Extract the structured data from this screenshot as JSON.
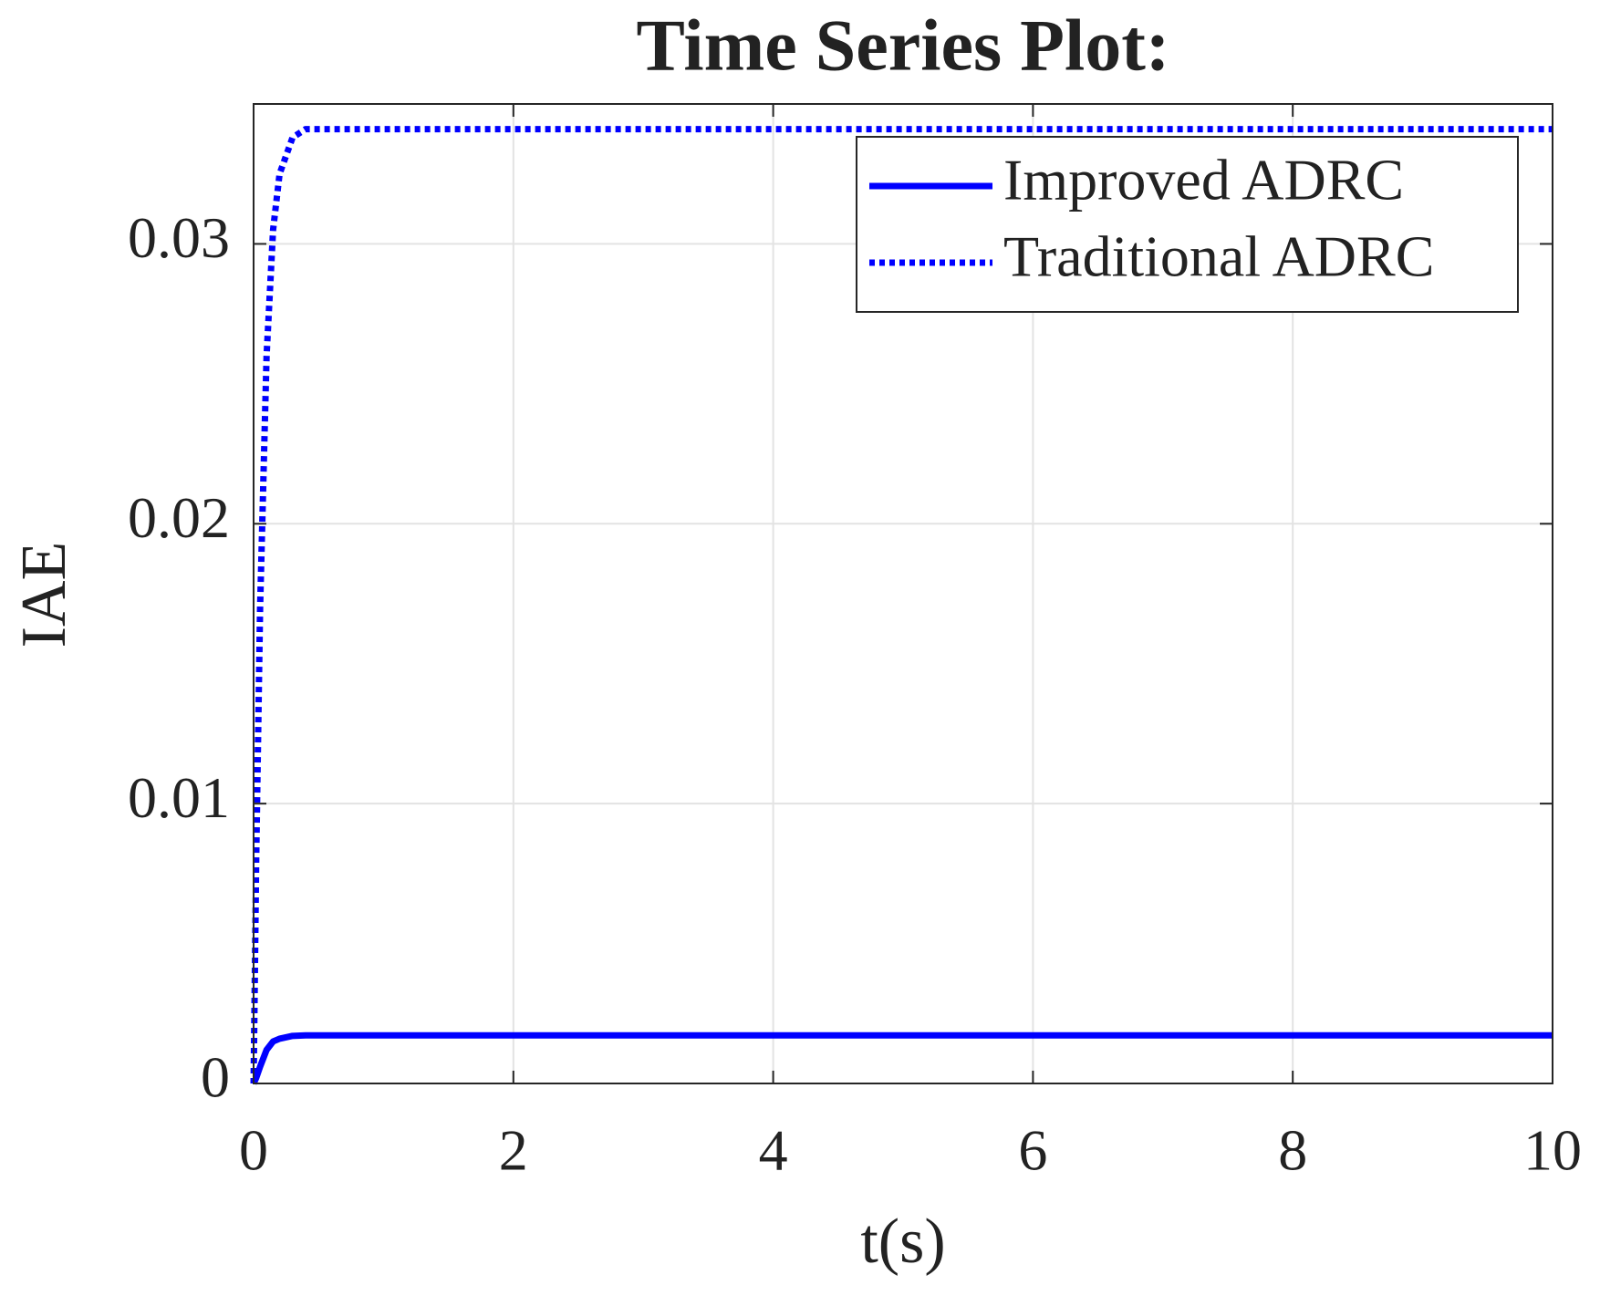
{
  "chart_data": {
    "type": "line",
    "title": "Time Series Plot:",
    "x_label": "t(s)",
    "y_label": "IAE",
    "x": [
      0,
      0.02,
      0.05,
      0.1,
      0.15,
      0.2,
      0.3,
      0.4,
      1,
      10
    ],
    "series": [
      {
        "name": "Improved ADRC",
        "color": "#0000ff",
        "line_style": "solid",
        "values": [
          0,
          0.0002,
          0.0006,
          0.0012,
          0.0015,
          0.0016,
          0.0017,
          0.00172,
          0.00172,
          0.00172
        ]
      },
      {
        "name": "Traditional ADRC",
        "color": "#0000ff",
        "line_style": "dotted",
        "values": [
          0,
          0.008,
          0.017,
          0.026,
          0.0305,
          0.0325,
          0.0338,
          0.0341,
          0.0341,
          0.0341
        ]
      }
    ],
    "xlim": [
      0,
      10
    ],
    "xticks": [
      0,
      2,
      4,
      6,
      8,
      10
    ],
    "ylim": [
      0,
      0.035
    ],
    "yticks": [
      0,
      0.01,
      0.02,
      0.03
    ],
    "grid": true,
    "legend": "northeast"
  }
}
